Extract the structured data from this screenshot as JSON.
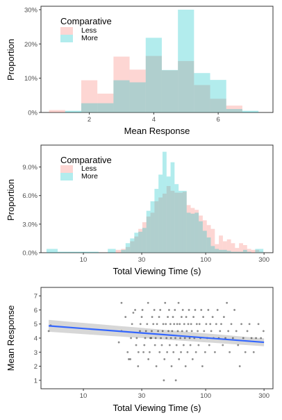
{
  "colors": {
    "less": "#F8766D",
    "more": "#00BFC4",
    "fit_line": "#3366FF",
    "band": "#bdbdbd",
    "points": "#000000"
  },
  "chart_data": [
    {
      "type": "histogram",
      "xlabel": "Mean Response",
      "ylabel": "Proportion",
      "xlim": [
        0.5,
        7.7
      ],
      "ylim": [
        0,
        0.31
      ],
      "x_ticks": [
        2,
        4,
        6
      ],
      "x_tick_labels": [
        "2",
        "4",
        "6"
      ],
      "y_ticks": [
        0,
        0.1,
        0.2,
        0.3
      ],
      "y_tick_labels": [
        "0%",
        "10%",
        "20%",
        "30%"
      ],
      "bins": [
        [
          0.75,
          1.25
        ],
        [
          1.25,
          1.75
        ],
        [
          1.75,
          2.25
        ],
        [
          2.25,
          2.75
        ],
        [
          2.75,
          3.25
        ],
        [
          3.25,
          3.75
        ],
        [
          3.75,
          4.25
        ],
        [
          4.25,
          4.75
        ],
        [
          4.75,
          5.25
        ],
        [
          5.25,
          5.75
        ],
        [
          5.75,
          6.25
        ],
        [
          6.25,
          6.75
        ],
        [
          6.75,
          7.25
        ]
      ],
      "legend": {
        "title": "Comparative",
        "position": "top-left"
      },
      "series": [
        {
          "name": "Less",
          "values": [
            0.007,
            0.0,
            0.094,
            0.055,
            0.163,
            0.125,
            0.165,
            0.123,
            0.15,
            0.08,
            0.04,
            0.02,
            0.0
          ]
        },
        {
          "name": "More",
          "values": [
            0.0,
            0.005,
            0.027,
            0.027,
            0.094,
            0.088,
            0.218,
            0.124,
            0.3,
            0.115,
            0.095,
            0.01,
            0.005
          ]
        }
      ]
    },
    {
      "type": "histogram",
      "xlabel": "Total Viewing Time (s)",
      "ylabel": "Proportion",
      "x_scale": "log10",
      "xlim": [
        4.5,
        355
      ],
      "ylim": [
        0,
        0.113
      ],
      "x_ticks": [
        10,
        30,
        100,
        300
      ],
      "x_tick_labels": [
        "10",
        "30",
        "100",
        "300"
      ],
      "y_ticks": [
        0,
        0.03,
        0.06,
        0.09
      ],
      "y_tick_labels": [
        "0.0%",
        "3.0%",
        "6.0%",
        "9.0%"
      ],
      "legend": {
        "title": "Comparative",
        "position": "top-left"
      },
      "bin_centers_s": [
        5.2,
        7.3,
        10.2,
        12.2,
        14.5,
        17.3,
        19.5,
        21.2,
        23.1,
        25.1,
        27.1,
        29.2,
        31.5,
        34.0,
        36.7,
        39.6,
        42.7,
        46.1,
        49.7,
        53.6,
        57.8,
        62.4,
        67.3,
        72.6,
        78.3,
        84.5,
        91.1,
        98.3,
        106.1,
        114.4,
        123.4,
        133.2,
        143.7,
        155.0,
        167.3,
        180.5,
        194.7,
        210.1,
        226.6,
        244.5,
        263.8,
        284.6
      ],
      "series": [
        {
          "name": "Less",
          "values": [
            0,
            0,
            0,
            0,
            0,
            0,
            0.003,
            0.004,
            0.006,
            0.012,
            0.017,
            0.025,
            0.032,
            0.038,
            0.042,
            0.054,
            0.058,
            0.062,
            0.07,
            0.065,
            0.063,
            0.063,
            0.064,
            0.05,
            0.047,
            0.045,
            0.039,
            0.034,
            0.029,
            0.025,
            0.009,
            0.018,
            0.012,
            0.014,
            0.01,
            0.005,
            0.01,
            0.008,
            0.004,
            0.003,
            0.003,
            0.001
          ]
        },
        {
          "name": "More",
          "values": [
            0.004,
            0.001,
            0.001,
            0.001,
            0,
            0.004,
            0,
            0.003,
            0.01,
            0.015,
            0.021,
            0.022,
            0.026,
            0.044,
            0.054,
            0.067,
            0.082,
            0.106,
            0.08,
            0.095,
            0.072,
            0.065,
            0.065,
            0.042,
            0.041,
            0.042,
            0.033,
            0.023,
            0.016,
            0.007,
            0.004,
            0.003,
            0.003,
            0.002,
            0.001,
            0.001,
            0.001,
            0.003,
            0.001,
            0.0,
            0.004,
            0.004
          ]
        }
      ]
    },
    {
      "type": "scatter",
      "xlabel": "Total Viewing Time (s)",
      "ylabel": "Mean Response",
      "x_scale": "log10",
      "xlim": [
        4.5,
        355
      ],
      "ylim": [
        0.4,
        7.6
      ],
      "x_ticks": [
        10,
        30,
        100,
        300
      ],
      "x_tick_labels": [
        "10",
        "30",
        "100",
        "300"
      ],
      "y_ticks": [
        1,
        2,
        3,
        4,
        5,
        6,
        7
      ],
      "y_tick_labels": [
        "1",
        "2",
        "3",
        "4",
        "5",
        "6",
        "7"
      ],
      "fit_line": {
        "x": [
          5.2,
          300
        ],
        "y": [
          4.87,
          3.7
        ],
        "band_halfwidth": [
          0.42,
          0.28
        ]
      },
      "points": [
        [
          5.2,
          4.5
        ],
        [
          5.4,
          4.9
        ],
        [
          19.5,
          3.7
        ],
        [
          20.5,
          4.5
        ],
        [
          20.5,
          6.5
        ],
        [
          22.1,
          5.5
        ],
        [
          23.0,
          3.0
        ],
        [
          23.5,
          2.5
        ],
        [
          24.2,
          2.5
        ],
        [
          24.5,
          4.0
        ],
        [
          25.0,
          5.0
        ],
        [
          25.6,
          5.8
        ],
        [
          26.5,
          6.0
        ],
        [
          27.0,
          3.5
        ],
        [
          27.3,
          4.0
        ],
        [
          28.0,
          2.0
        ],
        [
          28.2,
          3.0
        ],
        [
          29.0,
          4.5
        ],
        [
          29.3,
          5.0
        ],
        [
          30.0,
          5.5
        ],
        [
          30.4,
          6.0
        ],
        [
          31.0,
          3.0
        ],
        [
          31.5,
          3.5
        ],
        [
          32.0,
          4.0
        ],
        [
          32.5,
          4.5
        ],
        [
          33.2,
          5.0
        ],
        [
          33.8,
          6.5
        ],
        [
          34.0,
          2.5
        ],
        [
          34.8,
          3.0
        ],
        [
          35.3,
          4.0
        ],
        [
          35.9,
          4.0
        ],
        [
          36.2,
          4.5
        ],
        [
          36.5,
          5.5
        ],
        [
          37.3,
          5.0
        ],
        [
          38.0,
          6.0
        ],
        [
          38.5,
          3.5
        ],
        [
          39.0,
          4.0
        ],
        [
          39.5,
          2.0
        ],
        [
          40.0,
          5.0
        ],
        [
          40.8,
          4.5
        ],
        [
          41.6,
          5.5
        ],
        [
          42.0,
          3.0
        ],
        [
          42.5,
          6.0
        ],
        [
          43.0,
          4.0
        ],
        [
          43.8,
          3.5
        ],
        [
          44.5,
          4.5
        ],
        [
          45.0,
          5.0
        ],
        [
          45.5,
          1.0
        ],
        [
          46.0,
          2.5
        ],
        [
          46.6,
          6.5
        ],
        [
          47.2,
          5.0
        ],
        [
          47.8,
          4.0
        ],
        [
          48.4,
          3.0
        ],
        [
          49.0,
          5.5
        ],
        [
          49.6,
          4.5
        ],
        [
          50.2,
          6.0
        ],
        [
          50.8,
          3.5
        ],
        [
          51.5,
          5.0
        ],
        [
          52.0,
          4.0
        ],
        [
          52.6,
          2.0
        ],
        [
          53.2,
          4.5
        ],
        [
          54.0,
          5.5
        ],
        [
          54.5,
          3.0
        ],
        [
          55.2,
          5.0
        ],
        [
          56.0,
          6.0
        ],
        [
          56.5,
          4.0
        ],
        [
          57.0,
          1.0
        ],
        [
          57.8,
          3.5
        ],
        [
          58.5,
          5.0
        ],
        [
          59.2,
          4.5
        ],
        [
          60.0,
          6.5
        ],
        [
          60.5,
          2.5
        ],
        [
          61.3,
          5.0
        ],
        [
          62.0,
          4.0
        ],
        [
          62.8,
          3.0
        ],
        [
          63.5,
          5.5
        ],
        [
          64.2,
          4.5
        ],
        [
          65.0,
          6.0
        ],
        [
          66.0,
          3.5
        ],
        [
          66.8,
          5.0
        ],
        [
          67.6,
          4.0
        ],
        [
          68.5,
          2.0
        ],
        [
          69.3,
          5.5
        ],
        [
          70.0,
          4.5
        ],
        [
          71.0,
          3.0
        ],
        [
          72.0,
          5.0
        ],
        [
          73.0,
          6.0
        ],
        [
          74.0,
          4.0
        ],
        [
          75.0,
          3.5
        ],
        [
          76.0,
          5.0
        ],
        [
          77.0,
          4.5
        ],
        [
          78.2,
          2.5
        ],
        [
          79.5,
          5.5
        ],
        [
          80.8,
          4.0
        ],
        [
          82.0,
          6.0
        ],
        [
          83.3,
          3.0
        ],
        [
          84.6,
          5.0
        ],
        [
          86.0,
          4.5
        ],
        [
          87.5,
          3.5
        ],
        [
          89.0,
          5.0
        ],
        [
          90.5,
          4.0
        ],
        [
          92.0,
          6.0
        ],
        [
          94.0,
          2.0
        ],
        [
          95.5,
          5.5
        ],
        [
          97.0,
          4.5
        ],
        [
          99.0,
          3.0
        ],
        [
          101.0,
          5.0
        ],
        [
          103.0,
          4.0
        ],
        [
          105.0,
          6.0
        ],
        [
          107.0,
          3.5
        ],
        [
          109.0,
          5.0
        ],
        [
          111.0,
          4.5
        ],
        [
          114.0,
          5.5
        ],
        [
          116.0,
          4.0
        ],
        [
          119.0,
          3.0
        ],
        [
          122.0,
          5.0
        ],
        [
          125.0,
          6.0
        ],
        [
          128.0,
          4.0
        ],
        [
          131.0,
          4.5
        ],
        [
          134.0,
          5.0
        ],
        [
          138.0,
          3.5
        ],
        [
          141.0,
          5.5
        ],
        [
          145.0,
          4.0
        ],
        [
          149.0,
          6.5
        ],
        [
          153.0,
          4.5
        ],
        [
          157.0,
          3.0
        ],
        [
          162.0,
          5.0
        ],
        [
          167.0,
          4.0
        ],
        [
          172.0,
          6.0
        ],
        [
          178.0,
          4.5
        ],
        [
          184.0,
          3.5
        ],
        [
          190.0,
          2.0
        ],
        [
          196.0,
          5.0
        ],
        [
          203.0,
          4.0
        ],
        [
          211.0,
          3.0
        ],
        [
          219.0,
          4.5
        ],
        [
          228.0,
          5.0
        ],
        [
          237.0,
          4.0
        ],
        [
          247.0,
          3.0
        ],
        [
          258.0,
          4.0
        ],
        [
          270.0,
          5.0
        ],
        [
          283.0,
          4.0
        ],
        [
          297.0,
          4.5
        ]
      ]
    }
  ]
}
